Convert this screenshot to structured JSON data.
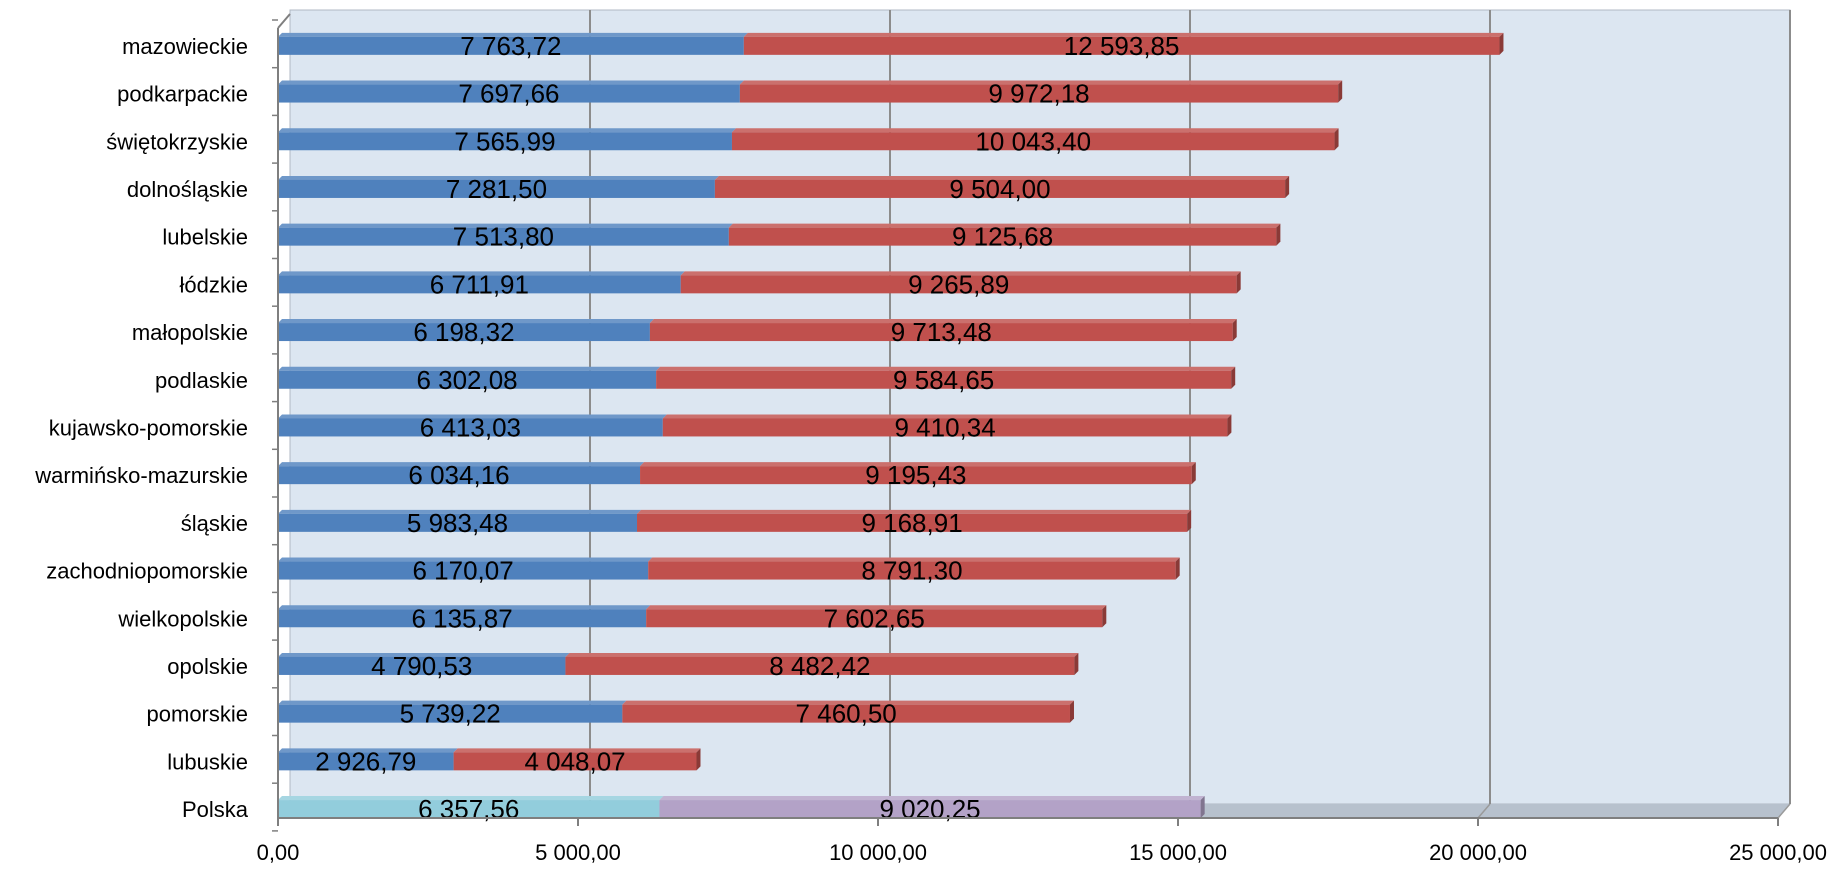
{
  "chart_data": {
    "type": "bar",
    "orientation": "horizontal",
    "stacked": true,
    "categories": [
      "mazowieckie",
      "podkarpackie",
      "świętokrzyskie",
      "dolnośląskie",
      "lubelskie",
      "łódzkie",
      "małopolskie",
      "podlaskie",
      "kujawsko-pomorskie",
      "warmińsko-mazurskie",
      "śląskie",
      "zachodniopomorskie",
      "wielkopolskie",
      "opolskie",
      "pomorskie",
      "lubuskie",
      "Polska"
    ],
    "series": [
      {
        "values": [
          7763.72,
          7697.66,
          7565.99,
          7281.5,
          7513.8,
          6711.91,
          6198.32,
          6302.08,
          6413.03,
          6034.16,
          5983.48,
          6170.07,
          6135.87,
          4790.53,
          5739.22,
          2926.79,
          6357.56
        ],
        "labels": [
          "7 763,72",
          "7 697,66",
          "7 565,99",
          "7 281,50",
          "7 513,80",
          "6 711,91",
          "6 198,32",
          "6 302,08",
          "6 413,03",
          "6 034,16",
          "5 983,48",
          "6 170,07",
          "6 135,87",
          "4 790,53",
          "5 739,22",
          "2 926,79",
          "6 357,56"
        ],
        "color": "#4f81bd",
        "highlight_color": "#92cddc"
      },
      {
        "values": [
          12593.85,
          9972.18,
          10043.4,
          9504.0,
          9125.68,
          9265.89,
          9713.48,
          9584.65,
          9410.34,
          9195.43,
          9168.91,
          8791.3,
          7602.65,
          8482.42,
          7460.5,
          4048.07,
          9020.25
        ],
        "labels": [
          "12 593,85",
          "9 972,18",
          "10 043,40",
          "9 504,00",
          "9 125,68",
          "9 265,89",
          "9 713,48",
          "9 584,65",
          "9 410,34",
          "9 195,43",
          "9 168,91",
          "8 791,30",
          "7 602,65",
          "8 482,42",
          "7 460,50",
          "4 048,07",
          "9 020,25"
        ],
        "color": "#c0504d",
        "highlight_color": "#b3a2c7"
      }
    ],
    "highlight_category": "Polska",
    "x_ticks": [
      0,
      5000,
      10000,
      15000,
      20000,
      25000
    ],
    "x_tick_labels": [
      "0,00",
      "5 000,00",
      "10 000,00",
      "15 000,00",
      "20 000,00",
      "25 000,00"
    ],
    "xlim": [
      0,
      25000
    ],
    "grid": true,
    "legend": "none",
    "plot_background": "#dce6f1",
    "title": "",
    "xlabel": "",
    "ylabel": ""
  }
}
